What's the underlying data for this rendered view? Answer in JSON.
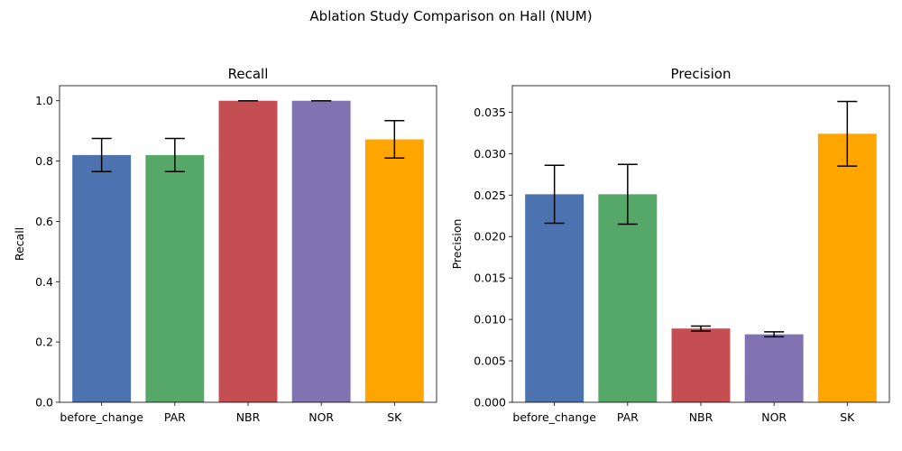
{
  "figure": {
    "title": "Ablation Study Comparison on Hall (NUM)"
  },
  "chart_data": [
    {
      "type": "bar",
      "title": "Recall",
      "xlabel": "",
      "ylabel": "Recall",
      "categories": [
        "before_change",
        "PAR",
        "NBR",
        "NOR",
        "SK"
      ],
      "values": [
        0.82,
        0.82,
        1.0,
        1.0,
        0.872
      ],
      "errors": [
        0.055,
        0.055,
        0.0,
        0.0,
        0.062
      ],
      "colors": [
        "#4c72b0",
        "#55a868",
        "#c44e52",
        "#8172b2",
        "#ffa500"
      ],
      "ylim": [
        0,
        1.05
      ],
      "yticks": [
        0.0,
        0.2,
        0.4,
        0.6,
        0.8,
        1.0
      ],
      "ytick_labels": [
        "0.0",
        "0.2",
        "0.4",
        "0.6",
        "0.8",
        "1.0"
      ],
      "grid": false
    },
    {
      "type": "bar",
      "title": "Precision",
      "xlabel": "",
      "ylabel": "Precision",
      "categories": [
        "before_change",
        "PAR",
        "NBR",
        "NOR",
        "SK"
      ],
      "values": [
        0.0251,
        0.0251,
        0.0089,
        0.0082,
        0.0324
      ],
      "errors": [
        0.0035,
        0.0036,
        0.0003,
        0.0003,
        0.0039
      ],
      "colors": [
        "#4c72b0",
        "#55a868",
        "#c44e52",
        "#8172b2",
        "#ffa500"
      ],
      "ylim": [
        0,
        0.0382
      ],
      "yticks": [
        0.0,
        0.005,
        0.01,
        0.015,
        0.02,
        0.025,
        0.03,
        0.035
      ],
      "ytick_labels": [
        "0.000",
        "0.005",
        "0.010",
        "0.015",
        "0.020",
        "0.025",
        "0.030",
        "0.035"
      ],
      "grid": false
    }
  ]
}
